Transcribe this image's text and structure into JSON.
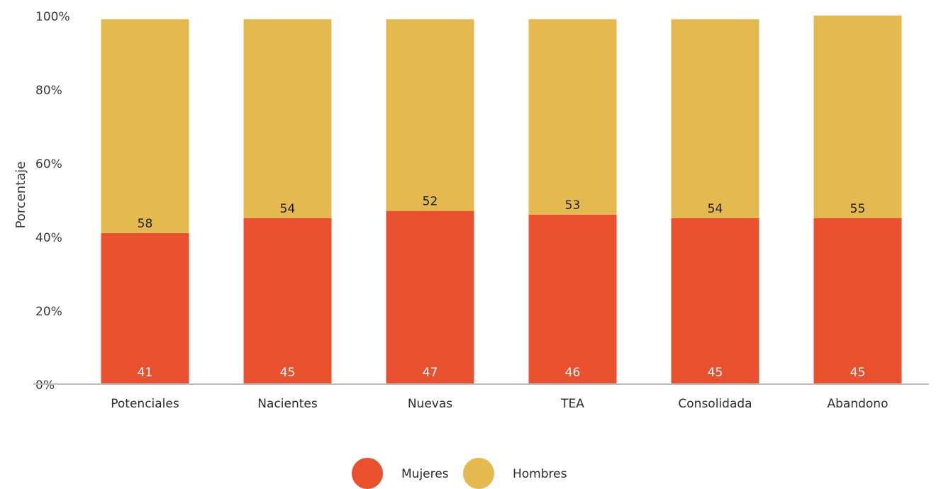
{
  "chart_data": {
    "type": "bar",
    "stacked": true,
    "title": "",
    "xlabel": "",
    "ylabel": "Porcentaje",
    "ylim": [
      0,
      100
    ],
    "y_ticks": [
      "0%",
      "20%",
      "40%",
      "60%",
      "80%",
      "100%"
    ],
    "grid": false,
    "legend_position": "bottom-center",
    "categories": [
      "Potenciales",
      "Nacientes",
      "Nuevas",
      "TEA",
      "Consolidada",
      "Abandono"
    ],
    "series": [
      {
        "name": "Mujeres",
        "color": "#E8502E",
        "values": [
          41,
          45,
          47,
          46,
          45,
          45
        ]
      },
      {
        "name": "Hombres",
        "color": "#E4BA50",
        "values": [
          58,
          54,
          52,
          53,
          54,
          55
        ]
      }
    ]
  }
}
